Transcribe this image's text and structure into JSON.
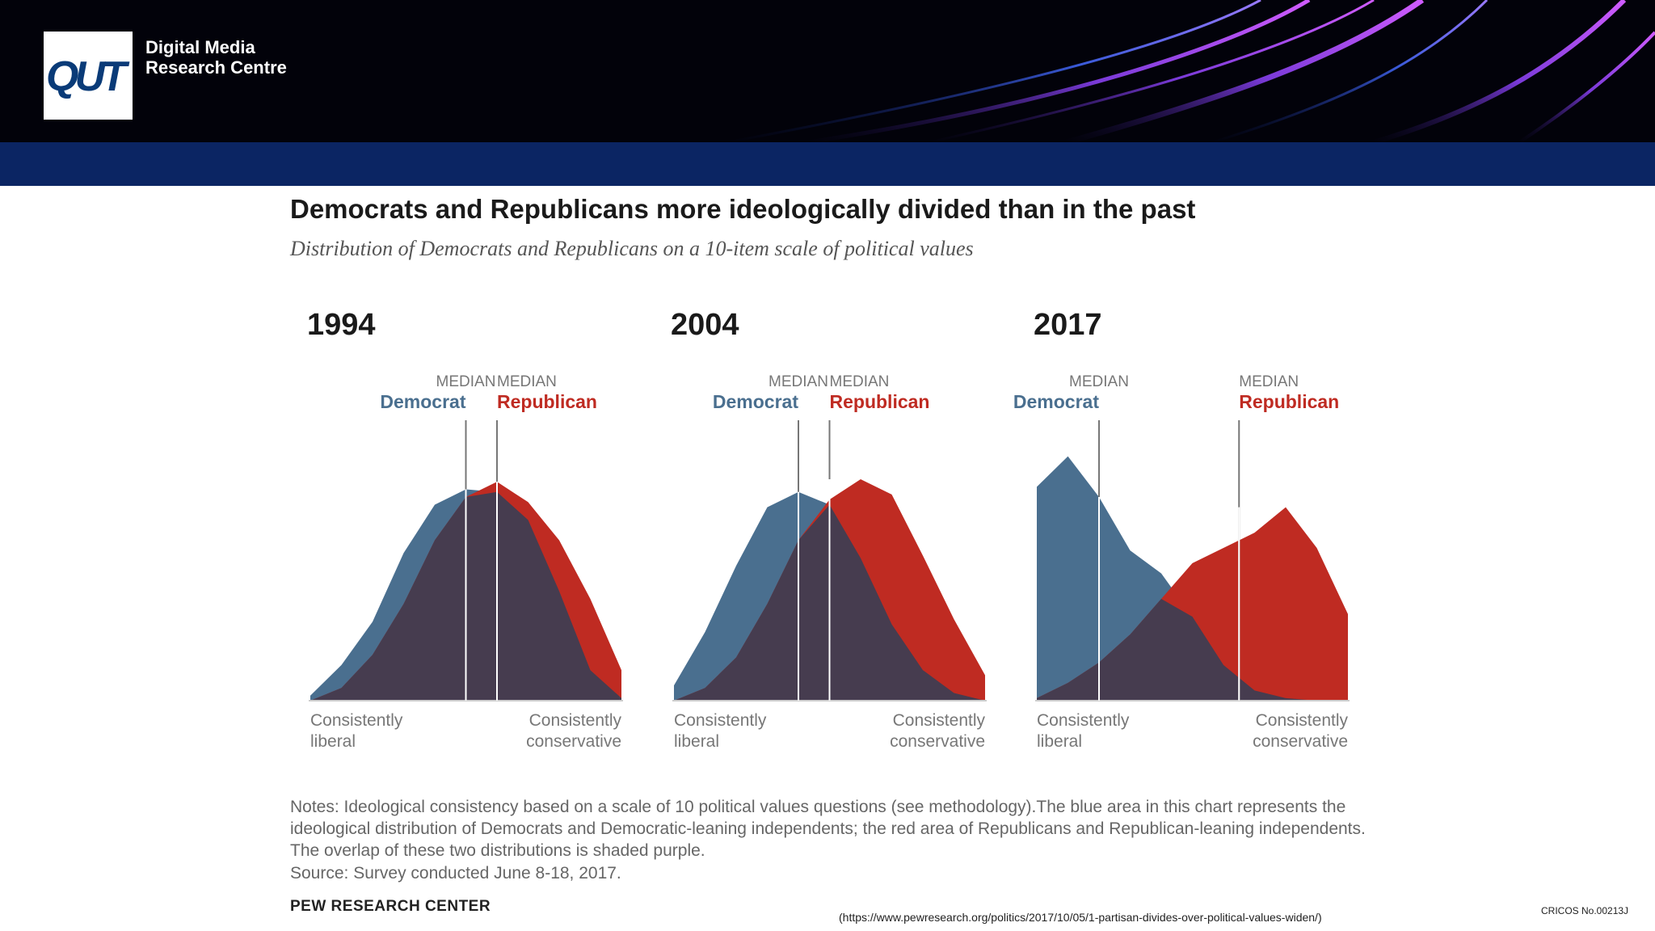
{
  "header": {
    "logo_text": "QUT",
    "centre_name_line1": "Digital Media",
    "centre_name_line2": "Research Centre"
  },
  "colors": {
    "banner": "#02020a",
    "navy_strip": "#0b2563",
    "democrat": "#4a6f8f",
    "republican": "#bf2b22",
    "overlap": "#463c4f",
    "median_line": "#ffffff"
  },
  "chart_data": [
    {
      "type": "area",
      "title": "1994",
      "x": [
        0,
        1,
        2,
        3,
        4,
        5,
        6,
        7,
        8,
        9,
        10
      ],
      "series": [
        {
          "name": "Democrat",
          "values": [
            2,
            14,
            31,
            58,
            77,
            83,
            82,
            71,
            43,
            12,
            1
          ]
        },
        {
          "name": "Republican",
          "values": [
            0,
            5,
            18,
            38,
            63,
            80,
            86,
            78,
            63,
            40,
            12
          ]
        }
      ],
      "median_democrat_x": 5.0,
      "median_republican_x": 6.0,
      "median_label": "MEDIAN",
      "democrat_label": "Democrat",
      "republican_label": "Republican",
      "xlabel_left": [
        "Consistently",
        "liberal"
      ],
      "xlabel_right": [
        "Consistently",
        "conservative"
      ]
    },
    {
      "type": "area",
      "title": "2004",
      "x": [
        0,
        1,
        2,
        3,
        4,
        5,
        6,
        7,
        8,
        9,
        10
      ],
      "series": [
        {
          "name": "Democrat",
          "values": [
            6,
            27,
            53,
            76,
            82,
            77,
            56,
            30,
            12,
            3,
            0
          ]
        },
        {
          "name": "Republican",
          "values": [
            0,
            5,
            17,
            38,
            63,
            79,
            87,
            81,
            57,
            32,
            10
          ]
        }
      ],
      "median_democrat_x": 4.0,
      "median_republican_x": 5.0,
      "median_label": "MEDIAN",
      "democrat_label": "Democrat",
      "republican_label": "Republican",
      "xlabel_left": [
        "Consistently",
        "liberal"
      ],
      "xlabel_right": [
        "Consistently",
        "conservative"
      ]
    },
    {
      "type": "area",
      "title": "2017",
      "x": [
        0,
        1,
        2,
        3,
        4,
        5,
        6,
        7,
        8,
        9,
        10
      ],
      "series": [
        {
          "name": "Democrat",
          "values": [
            84,
            96,
            80,
            59,
            50,
            33,
            14,
            4,
            1,
            0,
            0
          ]
        },
        {
          "name": "Republican",
          "values": [
            1,
            7,
            15,
            26,
            40,
            54,
            60,
            66,
            76,
            60,
            34
          ]
        }
      ],
      "median_democrat_x": 2.0,
      "median_republican_x": 6.5,
      "median_label": "MEDIAN",
      "democrat_label": "Democrat",
      "republican_label": "Republican",
      "xlabel_left": [
        "Consistently",
        "liberal"
      ],
      "xlabel_right": [
        "Consistently",
        "conservative"
      ]
    }
  ],
  "chart_text": {
    "title": "Democrats and Republicans more ideologically divided than in the past",
    "subtitle": "Distribution of Democrats and Republicans on a 10-item scale of political values"
  },
  "footer": {
    "notes": "Notes: Ideological consistency based on a scale of 10 political values questions (see methodology).The blue area in this chart represents the ideological distribution of Democrats and Democratic-leaning independents; the red area of Republicans and Republican-leaning independents. The overlap of these two distributions is shaded purple.",
    "source": "Source: Survey conducted June 8-18, 2017.",
    "pew": "PEW RESEARCH CENTER",
    "url": "(https://www.pewresearch.org/politics/2017/10/05/1-partisan-divides-over-political-values-widen/)",
    "cricos": "CRICOS No.00213J"
  }
}
